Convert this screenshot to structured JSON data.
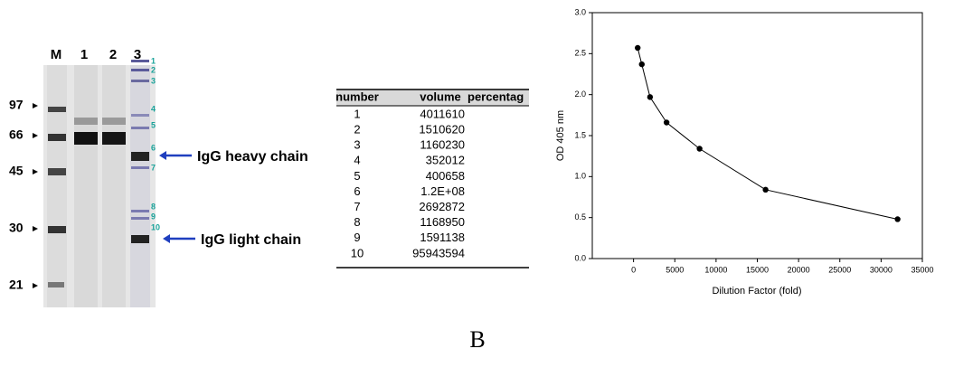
{
  "gel": {
    "lanes": [
      "M",
      "1",
      "2",
      "3"
    ],
    "markers": [
      "97",
      "66",
      "45",
      "30",
      "21"
    ],
    "band_numbers": [
      "1",
      "2",
      "3",
      "4",
      "5",
      "6",
      "7",
      "8",
      "9",
      "10"
    ],
    "annotations": [
      "IgG heavy chain",
      "IgG light chain"
    ]
  },
  "table": {
    "header": [
      "number",
      "volume",
      "percentag"
    ],
    "rows": [
      [
        "1",
        "4011610"
      ],
      [
        "2",
        "1510620"
      ],
      [
        "3",
        "1160230"
      ],
      [
        "4",
        "352012"
      ],
      [
        "5",
        "400658"
      ],
      [
        "6",
        "1.2E+08"
      ],
      [
        "7",
        "2692872"
      ],
      [
        "8",
        "1168950"
      ],
      [
        "9",
        "1591138"
      ],
      [
        "10",
        "95943594"
      ]
    ]
  },
  "chart_data": {
    "type": "line",
    "x_label": "Dilution Factor (fold)",
    "y_label": "OD 405 nm",
    "x": [
      500,
      1000,
      2000,
      4000,
      8000,
      16000,
      32000
    ],
    "values": [
      2.57,
      2.37,
      1.97,
      1.66,
      1.34,
      0.84,
      0.48
    ],
    "color": "#000000",
    "xlim": [
      -5000,
      35000
    ],
    "xticks": [
      0,
      5000,
      10000,
      15000,
      20000,
      25000,
      30000,
      35000
    ],
    "ylim": [
      0,
      3
    ],
    "yticks": [
      {
        "value": 0,
        "label": "0.0"
      },
      {
        "value": 0.5,
        "label": "0.5"
      },
      {
        "value": 1,
        "label": "1.0"
      },
      {
        "value": 1.5,
        "label": "1.5"
      },
      {
        "value": 2,
        "label": "2.0"
      },
      {
        "value": 2.5,
        "label": "2.5"
      },
      {
        "value": 3,
        "label": "3.0"
      }
    ]
  },
  "panel_label": "B"
}
